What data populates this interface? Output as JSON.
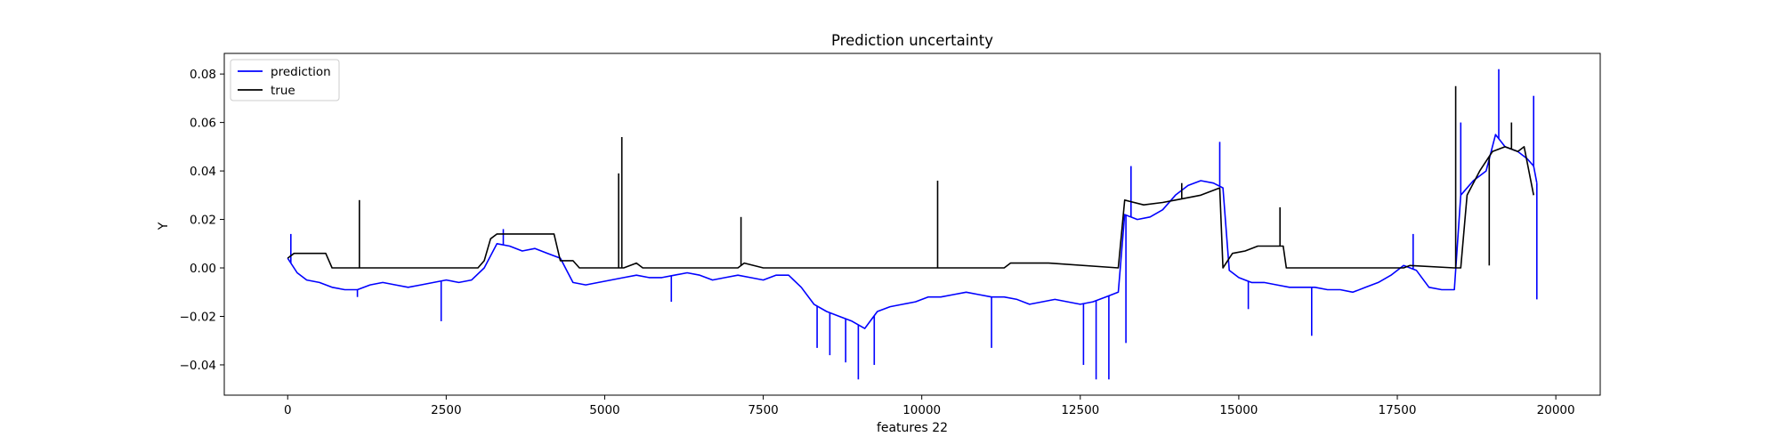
{
  "chart_data": {
    "type": "line",
    "title": "Prediction uncertainty",
    "xlabel": "features 22",
    "ylabel": "Y",
    "xlim": [
      -1000,
      20700
    ],
    "ylim": [
      -0.0525,
      0.0885
    ],
    "xticks": [
      0,
      2500,
      5000,
      7500,
      10000,
      12500,
      15000,
      17500,
      20000
    ],
    "xtick_labels": [
      "0",
      "2500",
      "5000",
      "7500",
      "10000",
      "12500",
      "15000",
      "17500",
      "20000"
    ],
    "yticks": [
      -0.04,
      -0.02,
      0.0,
      0.02,
      0.04,
      0.06,
      0.08
    ],
    "ytick_labels": [
      "−0.04",
      "−0.02",
      "0.00",
      "0.02",
      "0.04",
      "0.06",
      "0.08"
    ],
    "grid": false,
    "legend_position": "upper-left",
    "colors": {
      "prediction": "#0000ff",
      "true": "#000000"
    },
    "series": [
      {
        "name": "prediction",
        "color": "#0000ff",
        "x": [
          0,
          150,
          300,
          500,
          700,
          900,
          1100,
          1300,
          1500,
          1700,
          1900,
          2100,
          2300,
          2500,
          2700,
          2900,
          3100,
          3300,
          3500,
          3700,
          3900,
          4100,
          4300,
          4500,
          4700,
          4900,
          5100,
          5300,
          5500,
          5700,
          5900,
          6100,
          6300,
          6500,
          6700,
          6900,
          7100,
          7300,
          7500,
          7700,
          7900,
          8100,
          8300,
          8500,
          8700,
          8900,
          9100,
          9300,
          9500,
          9700,
          9900,
          10100,
          10300,
          10500,
          10700,
          10900,
          11100,
          11300,
          11500,
          11700,
          11900,
          12100,
          12300,
          12500,
          12700,
          12900,
          13100,
          13200,
          13400,
          13600,
          13800,
          14000,
          14200,
          14400,
          14600,
          14750,
          14850,
          15000,
          15200,
          15400,
          15600,
          15800,
          16000,
          16200,
          16400,
          16600,
          16800,
          17000,
          17200,
          17400,
          17600,
          17800,
          18000,
          18200,
          18400,
          18500,
          18700,
          18900,
          19050,
          19200,
          19400,
          19550,
          19650,
          19700
        ],
        "y": [
          0.004,
          -0.002,
          -0.005,
          -0.006,
          -0.008,
          -0.009,
          -0.009,
          -0.007,
          -0.006,
          -0.007,
          -0.008,
          -0.007,
          -0.006,
          -0.005,
          -0.006,
          -0.005,
          0.0,
          0.01,
          0.009,
          0.007,
          0.008,
          0.006,
          0.004,
          -0.006,
          -0.007,
          -0.006,
          -0.005,
          -0.004,
          -0.003,
          -0.004,
          -0.004,
          -0.003,
          -0.002,
          -0.003,
          -0.005,
          -0.004,
          -0.003,
          -0.004,
          -0.005,
          -0.003,
          -0.003,
          -0.008,
          -0.015,
          -0.018,
          -0.02,
          -0.022,
          -0.025,
          -0.018,
          -0.016,
          -0.015,
          -0.014,
          -0.012,
          -0.012,
          -0.011,
          -0.01,
          -0.011,
          -0.012,
          -0.012,
          -0.013,
          -0.015,
          -0.014,
          -0.013,
          -0.014,
          -0.015,
          -0.014,
          -0.012,
          -0.01,
          0.022,
          0.02,
          0.021,
          0.024,
          0.03,
          0.034,
          0.036,
          0.035,
          0.033,
          -0.001,
          -0.004,
          -0.006,
          -0.006,
          -0.007,
          -0.008,
          -0.008,
          -0.008,
          -0.009,
          -0.009,
          -0.01,
          -0.008,
          -0.006,
          -0.003,
          0.001,
          -0.001,
          -0.008,
          -0.009,
          -0.009,
          0.03,
          0.036,
          0.04,
          0.055,
          0.05,
          0.048,
          0.045,
          0.042,
          0.035
        ]
      },
      {
        "name": "true",
        "color": "#000000",
        "x": [
          0,
          100,
          600,
          700,
          3000,
          3100,
          3200,
          3300,
          4200,
          4300,
          4500,
          4600,
          5300,
          5500,
          5600,
          7100,
          7200,
          7500,
          11300,
          11400,
          12000,
          13100,
          13200,
          13500,
          13800,
          14000,
          14400,
          14700,
          14750,
          14900,
          15100,
          15300,
          15700,
          15750,
          17600,
          17700,
          18400,
          18500,
          18600,
          18800,
          19000,
          19200,
          19400,
          19500,
          19650
        ],
        "y": [
          0.004,
          0.006,
          0.006,
          0.0,
          0.0,
          0.003,
          0.012,
          0.014,
          0.014,
          0.003,
          0.003,
          0.0,
          0.0,
          0.002,
          0.0,
          0.0,
          0.002,
          0.0,
          0.0,
          0.002,
          0.002,
          0.0,
          0.028,
          0.026,
          0.027,
          0.028,
          0.03,
          0.033,
          0.0,
          0.006,
          0.007,
          0.009,
          0.009,
          0.0,
          0.0,
          0.001,
          0.0,
          0.0,
          0.03,
          0.04,
          0.048,
          0.05,
          0.048,
          0.05,
          0.03
        ]
      }
    ],
    "spikes": {
      "prediction": [
        {
          "x": 50,
          "y": 0.014
        },
        {
          "x": 1100,
          "y": -0.012
        },
        {
          "x": 2420,
          "y": -0.022
        },
        {
          "x": 3400,
          "y": 0.016
        },
        {
          "x": 6050,
          "y": -0.014
        },
        {
          "x": 8350,
          "y": -0.033
        },
        {
          "x": 8550,
          "y": -0.036
        },
        {
          "x": 8800,
          "y": -0.039
        },
        {
          "x": 9000,
          "y": -0.046
        },
        {
          "x": 9250,
          "y": -0.04
        },
        {
          "x": 11100,
          "y": -0.033
        },
        {
          "x": 12550,
          "y": -0.04
        },
        {
          "x": 12750,
          "y": -0.046
        },
        {
          "x": 12950,
          "y": -0.046
        },
        {
          "x": 13220,
          "y": -0.031
        },
        {
          "x": 13300,
          "y": 0.042
        },
        {
          "x": 14700,
          "y": 0.052
        },
        {
          "x": 15150,
          "y": -0.017
        },
        {
          "x": 16150,
          "y": -0.028
        },
        {
          "x": 17750,
          "y": 0.014
        },
        {
          "x": 18500,
          "y": 0.06
        },
        {
          "x": 19100,
          "y": 0.082
        },
        {
          "x": 19650,
          "y": 0.071
        },
        {
          "x": 19700,
          "y": -0.013
        }
      ],
      "true": [
        {
          "x": 1130,
          "y": 0.028
        },
        {
          "x": 5220,
          "y": 0.039
        },
        {
          "x": 5270,
          "y": 0.054
        },
        {
          "x": 7150,
          "y": 0.021
        },
        {
          "x": 10250,
          "y": 0.036
        },
        {
          "x": 14100,
          "y": 0.035
        },
        {
          "x": 15650,
          "y": 0.025
        },
        {
          "x": 18420,
          "y": 0.075
        },
        {
          "x": 18950,
          "y": 0.001
        },
        {
          "x": 19300,
          "y": 0.06
        }
      ]
    }
  }
}
